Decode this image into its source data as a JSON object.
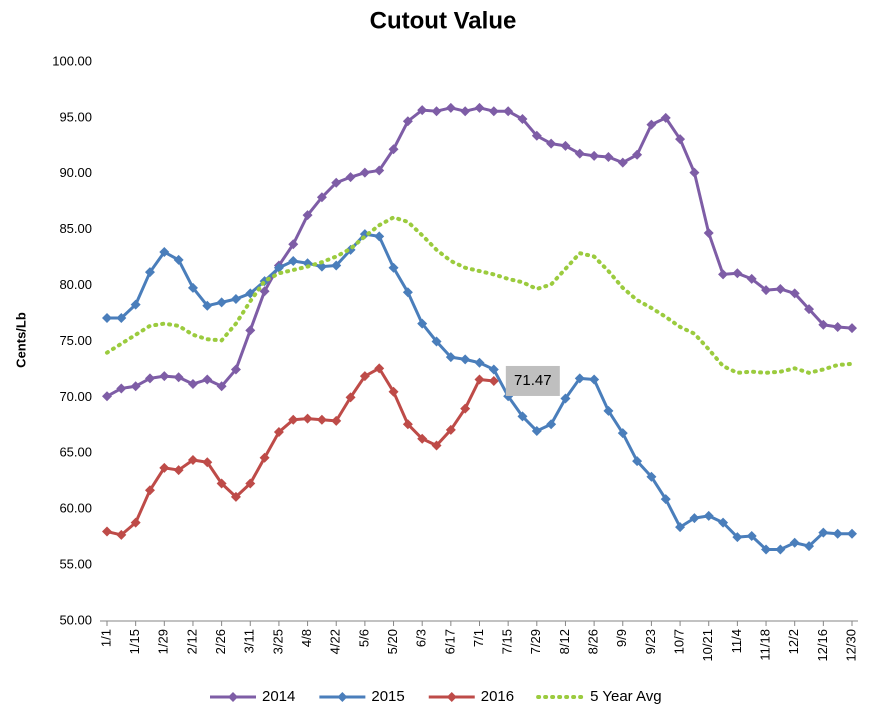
{
  "chart_data": {
    "type": "line",
    "title": "Cutout Value",
    "y_label": "Cents/Lb",
    "categories": [
      "1/1",
      null,
      "1/15",
      null,
      "1/29",
      null,
      "2/12",
      null,
      "2/26",
      null,
      "3/11",
      null,
      "3/25",
      null,
      "4/8",
      null,
      "4/22",
      null,
      "5/6",
      null,
      "5/20",
      null,
      "6/3",
      null,
      "6/17",
      null,
      "7/1",
      null,
      "7/15",
      null,
      "7/29",
      null,
      "8/12",
      null,
      "8/26",
      null,
      "9/9",
      null,
      "9/23",
      null,
      "10/7",
      null,
      "10/21",
      null,
      "11/4",
      null,
      "11/18",
      null,
      "12/2",
      null,
      "12/16",
      null,
      "12/30"
    ],
    "series": [
      {
        "name": "2014",
        "color": "#7e5da6",
        "marker": "diamond",
        "dashed": false,
        "values": [
          70.1,
          70.8,
          71.0,
          71.7,
          71.9,
          71.8,
          71.2,
          71.6,
          71.0,
          72.5,
          76.0,
          79.5,
          81.8,
          83.7,
          86.3,
          87.9,
          89.2,
          89.7,
          90.1,
          90.3,
          92.2,
          94.7,
          95.7,
          95.6,
          95.9,
          95.6,
          95.9,
          95.6,
          95.6,
          94.9,
          93.4,
          92.7,
          92.5,
          91.8,
          91.6,
          91.5,
          91.0,
          91.7,
          94.4,
          95.0,
          93.1,
          90.1,
          84.7,
          81.0,
          81.1,
          80.6,
          79.6,
          79.7,
          79.3,
          77.9,
          76.5,
          76.3,
          76.2
        ]
      },
      {
        "name": "2015",
        "color": "#4a7ebb",
        "marker": "diamond",
        "dashed": false,
        "values": [
          77.1,
          77.1,
          78.3,
          81.2,
          83.0,
          82.3,
          79.8,
          78.2,
          78.5,
          78.8,
          79.3,
          80.4,
          81.6,
          82.2,
          82.0,
          81.7,
          81.8,
          83.2,
          84.6,
          84.4,
          81.6,
          79.4,
          76.6,
          75.0,
          73.6,
          73.4,
          73.1,
          72.5,
          70.1,
          68.3,
          67.0,
          67.6,
          69.9,
          71.7,
          71.6,
          68.8,
          66.8,
          64.3,
          62.9,
          60.9,
          58.4,
          59.2,
          59.4,
          58.8,
          57.5,
          57.6,
          56.4,
          56.4,
          57.0,
          56.7,
          57.9,
          57.8,
          57.8
        ]
      },
      {
        "name": "2016",
        "color": "#be4b48",
        "marker": "diamond",
        "dashed": false,
        "values": [
          58.0,
          57.7,
          58.8,
          61.7,
          63.7,
          63.5,
          64.4,
          64.2,
          62.3,
          61.1,
          62.3,
          64.6,
          66.9,
          68.0,
          68.1,
          68.0,
          67.9,
          70.0,
          71.9,
          72.6,
          70.5,
          67.6,
          66.3,
          65.7,
          67.1,
          69.0,
          71.6,
          71.47,
          null,
          null,
          null,
          null,
          null,
          null,
          null,
          null,
          null,
          null,
          null,
          null,
          null,
          null,
          null,
          null,
          null,
          null,
          null,
          null,
          null,
          null,
          null,
          null,
          null
        ],
        "value_labels": [
          null,
          null,
          null,
          null,
          null,
          null,
          null,
          null,
          null,
          null,
          null,
          null,
          null,
          null,
          null,
          null,
          null,
          null,
          null,
          null,
          null,
          null,
          null,
          null,
          null,
          null,
          null,
          "71.47",
          null,
          null,
          null,
          null,
          null,
          null,
          null,
          null,
          null,
          null,
          null,
          null,
          null,
          null,
          null,
          null,
          null,
          null,
          null,
          null,
          null,
          null,
          null,
          null,
          null
        ]
      },
      {
        "name": "5 Year Avg",
        "color": "#9bcb3e",
        "marker": "none",
        "dashed": true,
        "values": [
          74.0,
          74.8,
          75.6,
          76.4,
          76.6,
          76.4,
          75.6,
          75.2,
          75.1,
          76.6,
          78.6,
          80.4,
          81.1,
          81.4,
          81.7,
          82.1,
          82.6,
          83.3,
          84.4,
          85.4,
          86.1,
          85.7,
          84.5,
          83.2,
          82.2,
          81.6,
          81.3,
          81.0,
          80.6,
          80.3,
          79.7,
          80.1,
          81.5,
          82.9,
          82.6,
          81.3,
          79.8,
          78.7,
          78.0,
          77.2,
          76.3,
          75.7,
          74.3,
          72.8,
          72.2,
          72.3,
          72.2,
          72.3,
          72.6,
          72.2,
          72.5,
          72.9,
          73.0
        ]
      }
    ],
    "ylim": [
      50,
      100
    ],
    "yticks": [
      {
        "value": 50,
        "label": "50.00"
      },
      {
        "value": 55,
        "label": "55.00"
      },
      {
        "value": 60,
        "label": "60.00"
      },
      {
        "value": 65,
        "label": "65.00"
      },
      {
        "value": 70,
        "label": "70.00"
      },
      {
        "value": 75,
        "label": "75.00"
      },
      {
        "value": 80,
        "label": "80.00"
      },
      {
        "value": 85,
        "label": "85.00"
      },
      {
        "value": 90,
        "label": "90.00"
      },
      {
        "value": 95,
        "label": "95.00"
      },
      {
        "value": 100,
        "label": "100.00"
      }
    ],
    "grid": false,
    "legend": "bottom"
  }
}
